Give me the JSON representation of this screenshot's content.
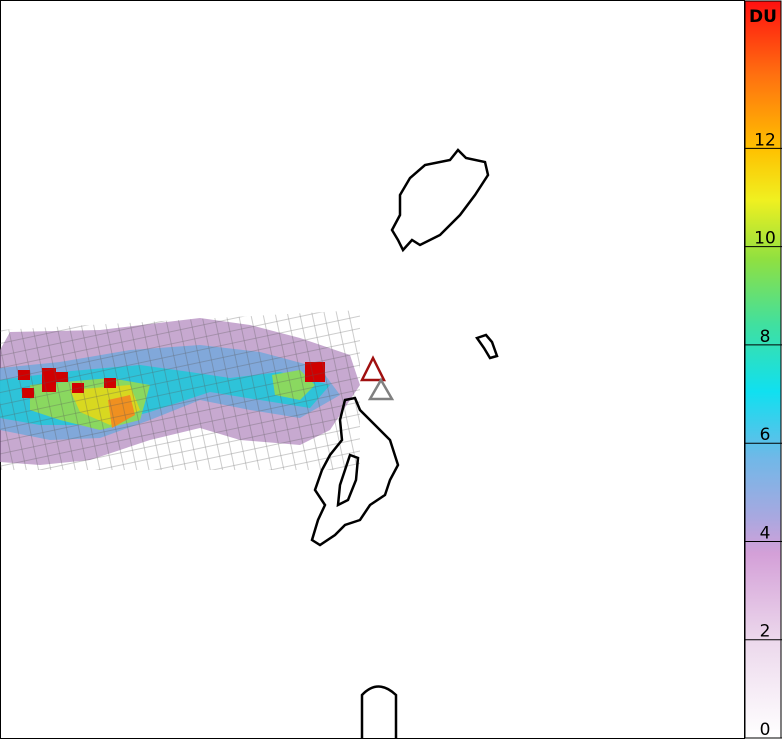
{
  "colorbar": {
    "label": "DU",
    "lim": [
      0,
      15
    ],
    "ticks": [
      0,
      2,
      4,
      6,
      8,
      10,
      12
    ]
  }
}
